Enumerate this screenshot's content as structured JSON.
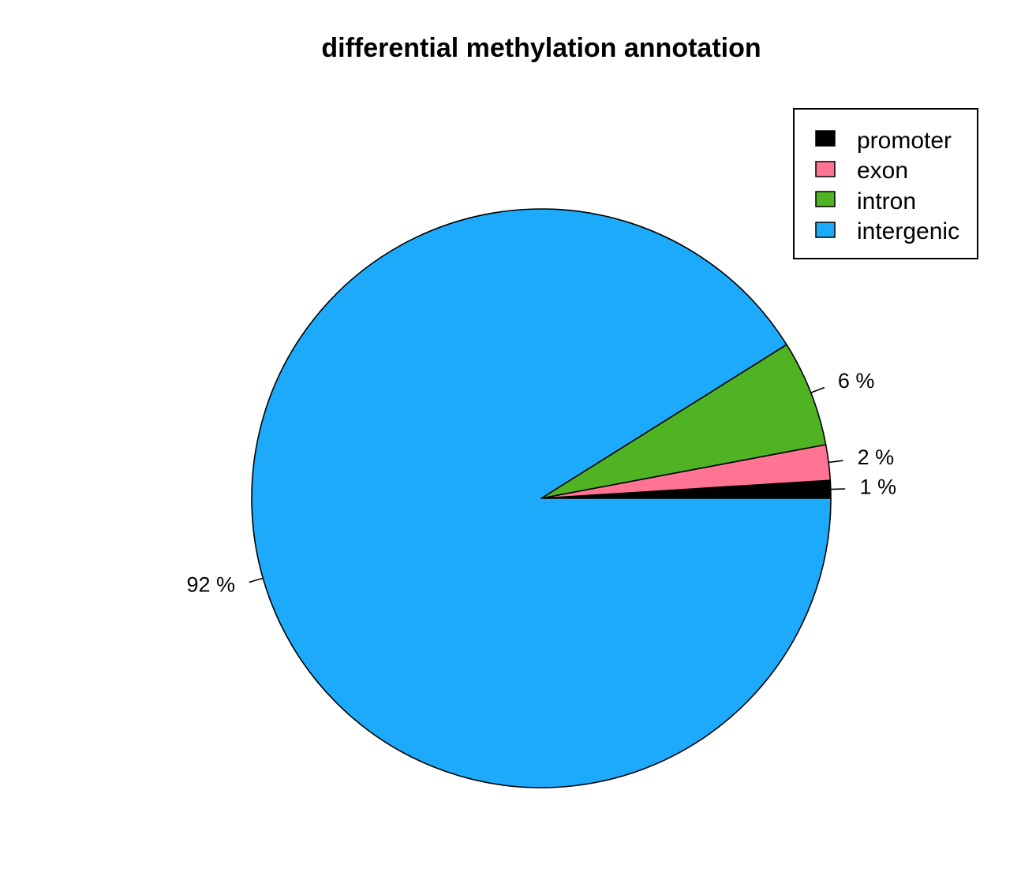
{
  "chart_data": {
    "type": "pie",
    "title": "differential methylation annotation",
    "slices": [
      {
        "label": "promoter",
        "percent": 1,
        "percent_label": "1 %",
        "color": "#000000"
      },
      {
        "label": "exon",
        "percent": 2,
        "percent_label": "2 %",
        "color": "#FF7393"
      },
      {
        "label": "intron",
        "percent": 6,
        "percent_label": "6 %",
        "color": "#4FB324"
      },
      {
        "label": "intergenic",
        "percent": 92,
        "percent_label": "92 %",
        "color": "#1EAAFB"
      }
    ],
    "legend": {
      "placement": "top-right",
      "items": [
        "promoter",
        "exon",
        "intron",
        "intergenic"
      ]
    }
  }
}
